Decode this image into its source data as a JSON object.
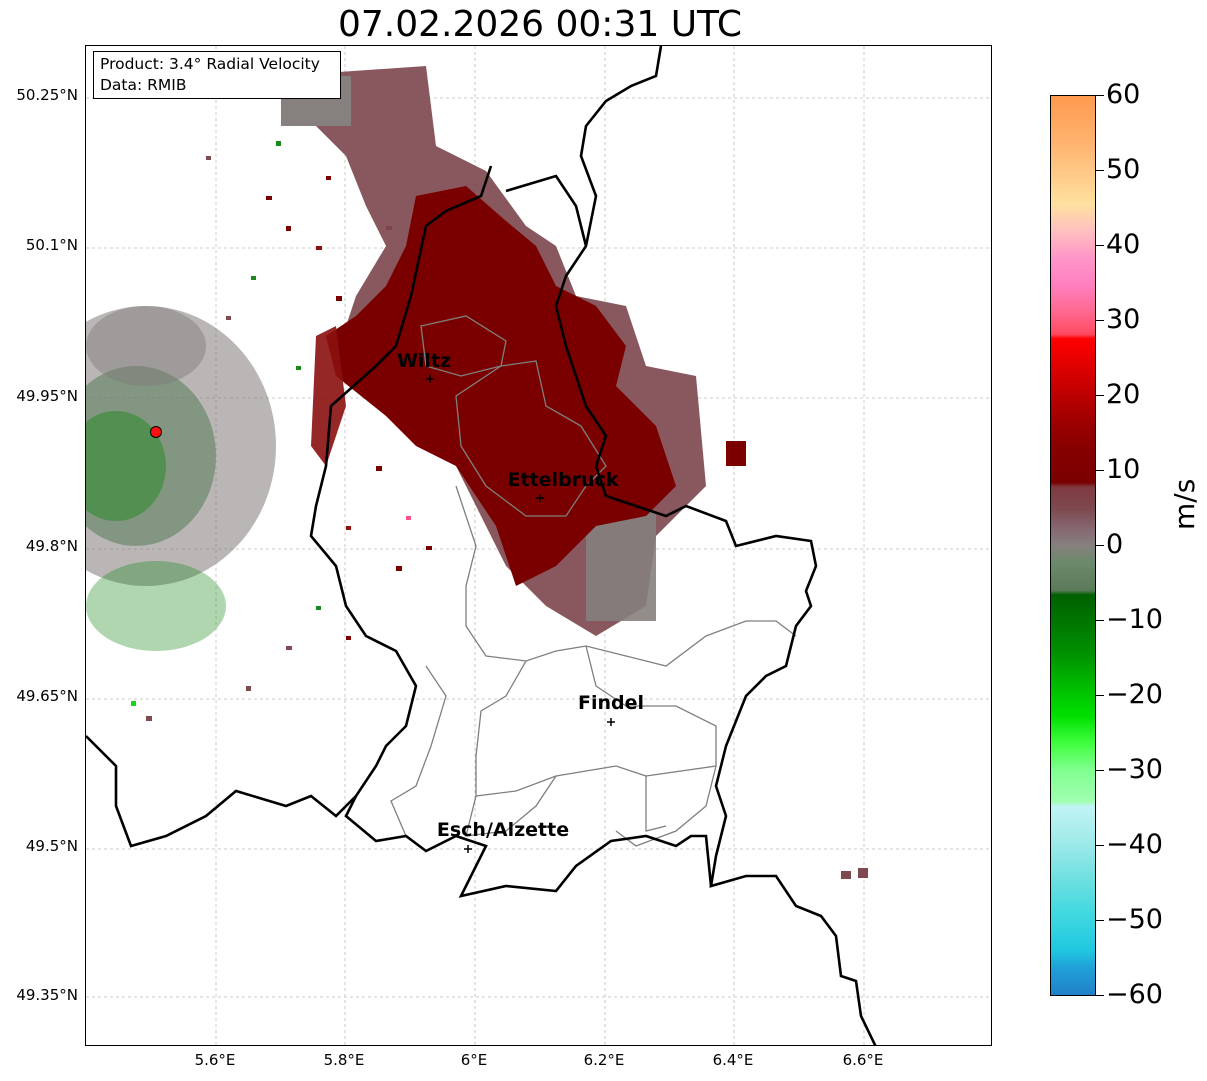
{
  "title": "07.02.2026 00:31 UTC",
  "info_box": {
    "product": "Product: 3.4° Radial Velocity",
    "data_source": "Data: RMIB"
  },
  "axes": {
    "lat_labels": [
      "50.25°N",
      "50.1°N",
      "49.95°N",
      "49.8°N",
      "49.65°N",
      "49.5°N",
      "49.35°N"
    ],
    "lon_labels": [
      "5.6°E",
      "5.8°E",
      "6°E",
      "6.2°E",
      "6.4°E",
      "6.6°E"
    ]
  },
  "cities": {
    "wiltz": "Wiltz",
    "ettelbruck": "Ettelbruck",
    "findel": "Findel",
    "esch": "Esch/Alzette"
  },
  "colorbar": {
    "unit": "m/s",
    "ticks": [
      "60",
      "50",
      "40",
      "30",
      "20",
      "10",
      "0",
      "−10",
      "−20",
      "−30",
      "−40",
      "−50",
      "−60"
    ],
    "range": [
      -60,
      60
    ]
  },
  "colors": {
    "strong_outbound": "#7a0000",
    "weak_outbound": "#7e4a50",
    "near_zero": "#86807e",
    "inbound": "#1a8a1a",
    "radar_site": "#ff1010"
  }
}
